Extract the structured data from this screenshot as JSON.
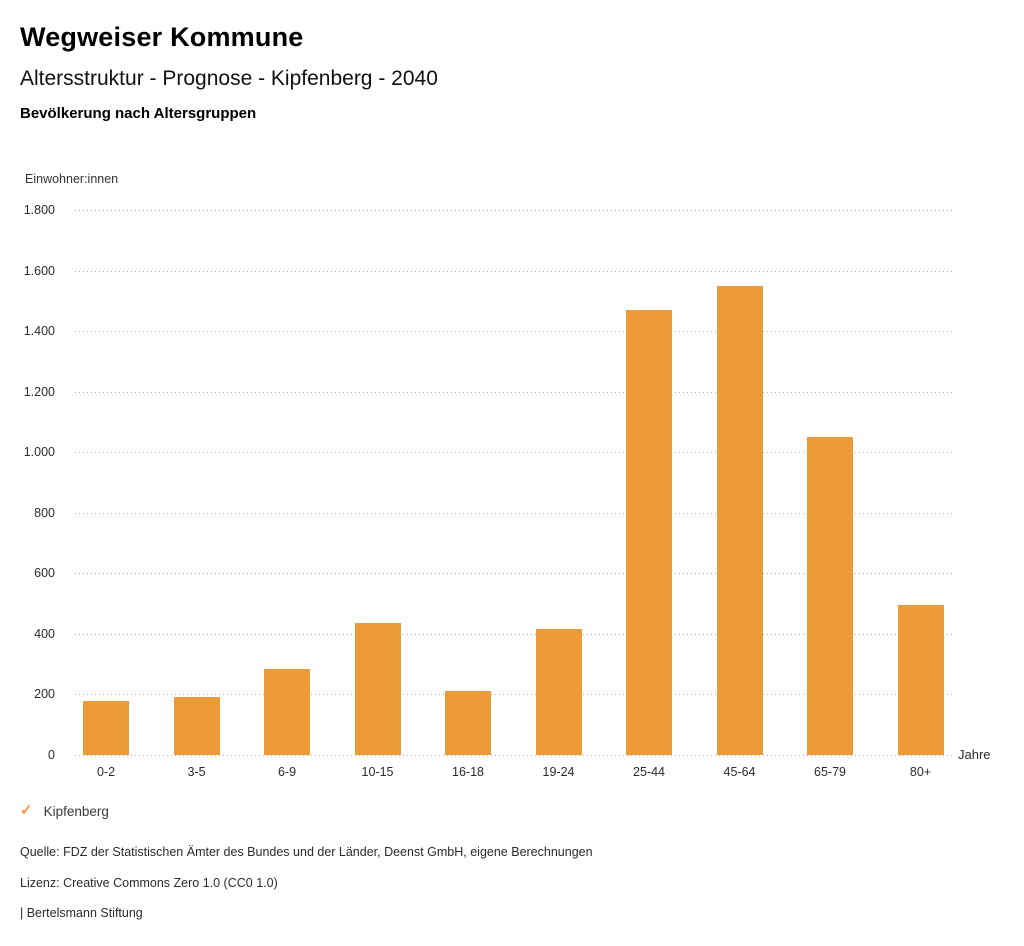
{
  "header": {
    "title": "Wegweiser Kommune",
    "subtitle": "Altersstruktur - Prognose - Kipfenberg - 2040",
    "section_title": "Bevölkerung nach Altersgruppen"
  },
  "chart_data": {
    "type": "bar",
    "title": "Bevölkerung nach Altersgruppen",
    "unit_label": "Einwohner:innen",
    "x_axis_label": "Jahre",
    "categories": [
      "0-2",
      "3-5",
      "6-9",
      "10-15",
      "16-18",
      "19-24",
      "25-44",
      "45-64",
      "65-79",
      "80+"
    ],
    "series": [
      {
        "name": "Kipfenberg",
        "values": [
          180,
          190,
          285,
          435,
          210,
          415,
          1470,
          1550,
          1050,
          495
        ]
      }
    ],
    "ylim": [
      0,
      1800
    ],
    "ytick_step": 200,
    "ytick_labels": [
      "0",
      "200",
      "400",
      "600",
      "800",
      "1.000",
      "1.200",
      "1.400",
      "1.600",
      "1.800"
    ],
    "grid": "horizontal-dotted",
    "legend_position": "bottom-left",
    "bar_color": "#ED9A38"
  },
  "legend": {
    "items": [
      {
        "label": "Kipfenberg",
        "checked": true
      }
    ]
  },
  "icons": {
    "legend_check": "✓"
  },
  "colors": {
    "accent": "#ED9A38",
    "gridline": "#b3b3b3"
  },
  "footer": {
    "source": "Quelle: FDZ der Statistischen Ämter des Bundes und der Länder, Deenst GmbH, eigene Berechnungen",
    "license": "Lizenz: Creative Commons Zero 1.0 (CC0 1.0)",
    "attribution": "| Bertelsmann Stiftung"
  }
}
